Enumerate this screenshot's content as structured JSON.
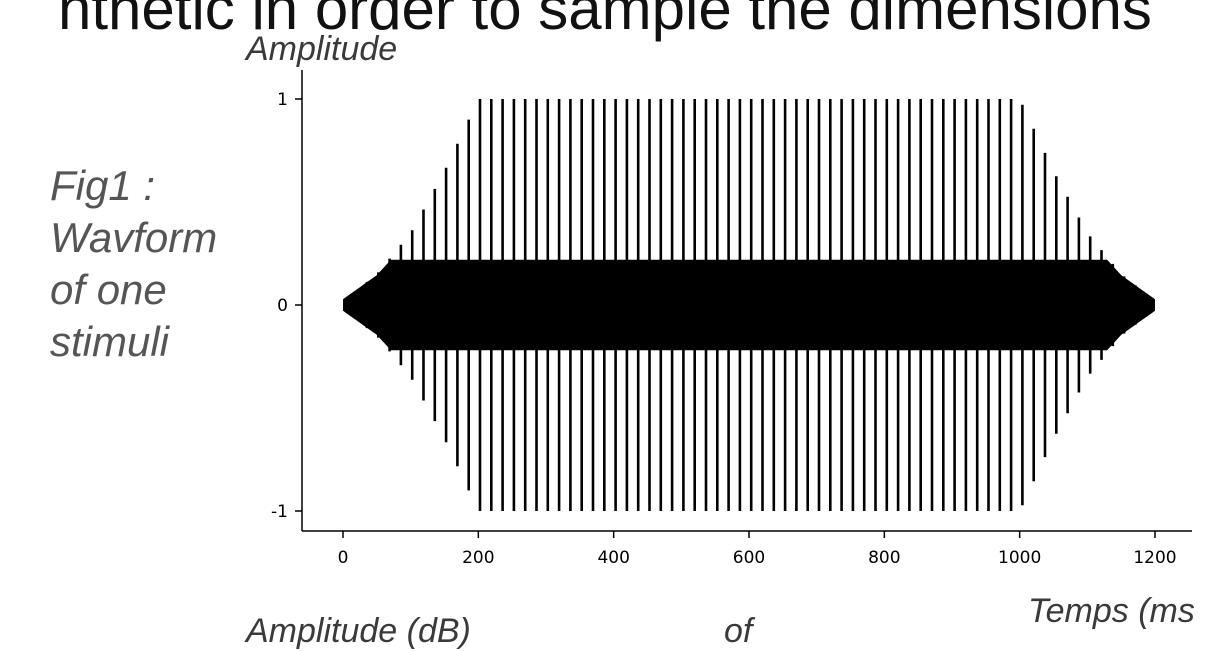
{
  "page": {
    "top_text": "nthetic in order to sample the dimensions",
    "caption_lines": [
      "Fig1 :",
      "Wavform",
      "of one",
      "stimuli"
    ],
    "bottom_left_text": "Amplitude (dB)",
    "bottom_mid_text": "of"
  },
  "chart_data": {
    "type": "line",
    "title": "",
    "xlabel": "Temps (ms",
    "ylabel": "Amplitude",
    "xlim": [
      -50,
      1230
    ],
    "ylim": [
      -1.05,
      1.05
    ],
    "x_ticks": [
      0,
      200,
      400,
      600,
      800,
      1000,
      1200
    ],
    "x_tick_labels": [
      "0",
      "200",
      "400",
      "600",
      "800",
      "1000",
      "1200"
    ],
    "y_ticks": [
      -1,
      0,
      1
    ],
    "y_tick_labels": [
      "-1",
      "0",
      "1"
    ],
    "grid": false,
    "color": "#000000",
    "signal": {
      "description_free": true,
      "start_ms": 0,
      "end_ms": 1200,
      "pulse_period_ms": 16.7,
      "peak_amplitude": 1.0,
      "ramp_up_end_ms": 200,
      "ramp_down_start_ms": 1000,
      "background_amplitude": 0.22
    },
    "series": [
      {
        "values_envelope": [
          {
            "x": 0,
            "y": 0.02
          },
          {
            "x": 50,
            "y": 0.15
          },
          {
            "x": 100,
            "y": 0.35
          },
          {
            "x": 150,
            "y": 0.65
          },
          {
            "x": 200,
            "y": 1.0
          },
          {
            "x": 1000,
            "y": 1.0
          },
          {
            "x": 1050,
            "y": 0.65
          },
          {
            "x": 1100,
            "y": 0.35
          },
          {
            "x": 1150,
            "y": 0.15
          },
          {
            "x": 1200,
            "y": 0.02
          }
        ]
      }
    ]
  }
}
